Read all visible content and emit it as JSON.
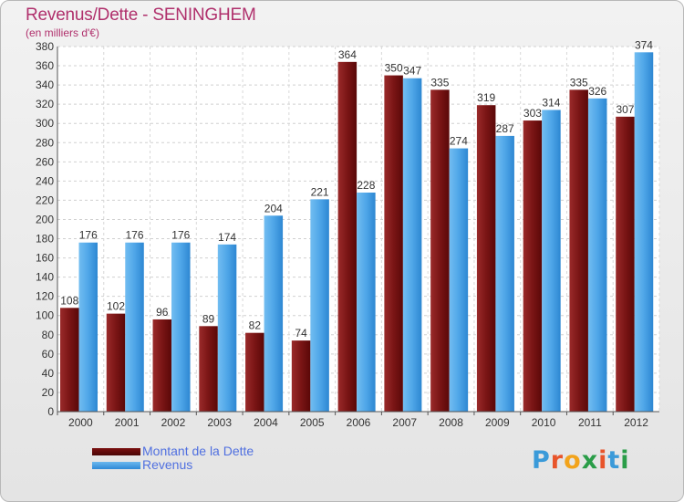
{
  "header": {
    "title": "Revenus/Dette - SENINGHEM",
    "subtitle": "(en milliers d'€)"
  },
  "legend": {
    "dette_label": "Montant de la Dette",
    "revenus_label": "Revenus"
  },
  "logo": {
    "text": "Proxiti"
  },
  "colors": {
    "dette": "#7a1515",
    "revenus": "#4fa6e8",
    "title": "#b0306c",
    "legend_text": "#5070e0"
  },
  "chart_data": {
    "type": "bar",
    "title": "Revenus/Dette - SENINGHEM",
    "subtitle": "(en milliers d'€)",
    "categories": [
      "2000",
      "2001",
      "2002",
      "2003",
      "2004",
      "2005",
      "2006",
      "2007",
      "2008",
      "2009",
      "2010",
      "2011",
      "2012"
    ],
    "series": [
      {
        "name": "Montant de la Dette",
        "values": [
          108,
          102,
          96,
          89,
          82,
          74,
          364,
          350,
          335,
          319,
          303,
          335,
          307
        ]
      },
      {
        "name": "Revenus",
        "values": [
          176,
          176,
          176,
          174,
          204,
          221,
          228,
          347,
          274,
          287,
          314,
          326,
          374
        ]
      }
    ],
    "ylim": [
      0,
      380
    ],
    "yticks": [
      0,
      20,
      40,
      60,
      80,
      100,
      120,
      140,
      160,
      180,
      200,
      220,
      240,
      260,
      280,
      300,
      320,
      340,
      360,
      380
    ],
    "grid": true,
    "legend": "bottom-left"
  }
}
